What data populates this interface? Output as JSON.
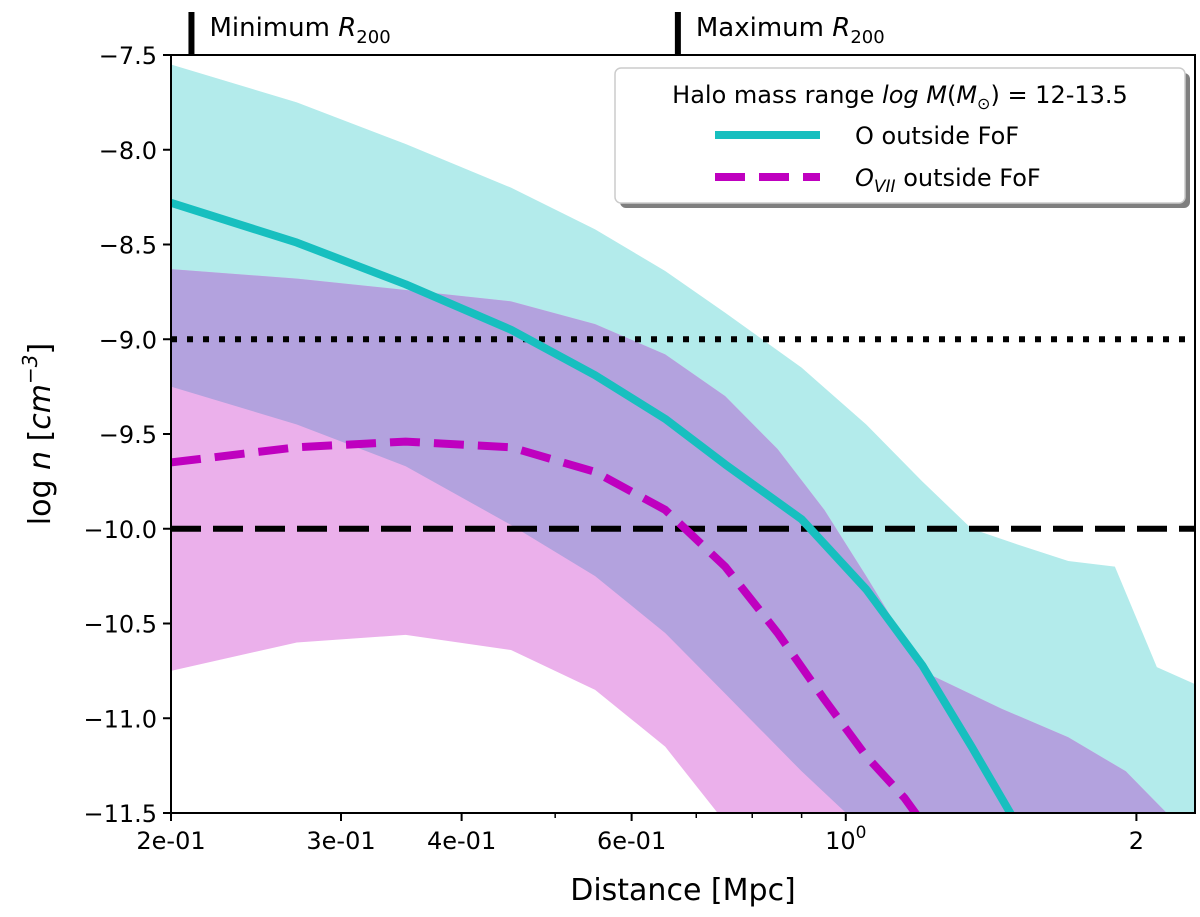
{
  "chart_data": {
    "type": "line",
    "xlabel": "Distance [Mpc]",
    "ylabel": "log n [cm⁻³]",
    "ylabel_parts": {
      "pre": "log ",
      "italic": "n",
      "open": " [",
      "unit": "cm",
      "exp": "−3",
      "close": "]"
    },
    "x_scale": "log",
    "xlim": [
      0.2,
      2.3
    ],
    "ylim": [
      -11.5,
      -7.5
    ],
    "xticks": [
      {
        "value": 0.2,
        "label": "2e-01"
      },
      {
        "value": 0.3,
        "label": "3e-01"
      },
      {
        "value": 0.4,
        "label": "4e-01"
      },
      {
        "value": 0.6,
        "label": "6e-01"
      },
      {
        "value": 1.0,
        "label": "10",
        "base": "10",
        "exp": "0"
      },
      {
        "value": 2.0,
        "label": "2"
      }
    ],
    "xminor": [
      0.5,
      0.7,
      0.8,
      0.9
    ],
    "yticks": [
      {
        "value": -7.5,
        "label": "−7.5"
      },
      {
        "value": -8.0,
        "label": "−8.0"
      },
      {
        "value": -8.5,
        "label": "−8.5"
      },
      {
        "value": -9.0,
        "label": "−9.0"
      },
      {
        "value": -9.5,
        "label": "−9.5"
      },
      {
        "value": -10.0,
        "label": "−10.0"
      },
      {
        "value": -10.5,
        "label": "−10.5"
      },
      {
        "value": -11.0,
        "label": "−11.0"
      },
      {
        "value": -11.5,
        "label": "−11.5"
      }
    ],
    "grid": false,
    "legend_position": "top-right",
    "legend_title": {
      "pre": "Halo mass range ",
      "italic": "log M",
      "open": "(",
      "sub_base": "M",
      "sub": "⊙",
      "close": ") = 12-13.5"
    },
    "series": [
      {
        "name": "O outside FoF",
        "label_parts": {
          "text": "O outside FoF"
        },
        "color": "#17bfbf",
        "style": "solid",
        "x": [
          0.2,
          0.27,
          0.35,
          0.45,
          0.55,
          0.65,
          0.75,
          0.9,
          1.05,
          1.2,
          1.35,
          1.5
        ],
        "y": [
          -8.28,
          -8.49,
          -8.71,
          -8.95,
          -9.19,
          -9.42,
          -9.66,
          -9.95,
          -10.32,
          -10.72,
          -11.15,
          -11.55
        ],
        "band_lower": [
          -9.25,
          -9.45,
          -9.67,
          -9.98,
          -10.25,
          -10.55,
          -10.87,
          -11.28,
          -11.6,
          -11.6,
          -11.6,
          -11.6
        ],
        "band_upper": [
          -7.55,
          -7.75,
          -7.97,
          -8.2,
          -8.42,
          -8.64,
          -8.86,
          -9.15,
          -9.45,
          -9.75,
          -10.0,
          -10.08
        ],
        "band_upper_ext": {
          "x": [
            1.7,
            1.9,
            2.1,
            2.3
          ],
          "y": [
            -10.17,
            -10.2,
            -10.73,
            -10.82
          ]
        },
        "band_lower_ext": {
          "x": [
            1.7,
            1.9,
            2.1,
            2.3
          ],
          "y": [
            -11.5,
            -11.5,
            -11.5,
            -11.5
          ]
        }
      },
      {
        "name": "O_VII outside FoF",
        "label_parts": {
          "italic": "O",
          "sub": "VII",
          "text": " outside FoF"
        },
        "color": "#bf00bf",
        "style": "dashed",
        "x": [
          0.2,
          0.27,
          0.35,
          0.45,
          0.55,
          0.65,
          0.75,
          0.85,
          0.95,
          1.05,
          1.15,
          1.2
        ],
        "y": [
          -9.65,
          -9.57,
          -9.54,
          -9.57,
          -9.7,
          -9.9,
          -10.2,
          -10.55,
          -10.9,
          -11.2,
          -11.42,
          -11.55
        ],
        "band_lower": [
          -10.75,
          -10.6,
          -10.56,
          -10.64,
          -10.85,
          -11.15,
          -11.55,
          -11.6,
          -11.6,
          -11.6,
          -11.6,
          -11.6
        ],
        "band_upper": [
          -8.63,
          -8.68,
          -8.74,
          -8.8,
          -8.92,
          -9.08,
          -9.3,
          -9.58,
          -9.9,
          -10.25,
          -10.58,
          -10.75
        ],
        "band_upper_ext": {
          "x": [
            1.45,
            1.7,
            1.95,
            2.15
          ],
          "y": [
            -10.95,
            -11.1,
            -11.28,
            -11.5
          ]
        },
        "band_lower_ext": {
          "x": [
            1.45,
            1.7,
            1.95,
            2.15
          ],
          "y": [
            -11.5,
            -11.5,
            -11.5,
            -11.5
          ]
        }
      }
    ],
    "hlines": [
      {
        "y": -9.0,
        "style": "dotted",
        "color": "#000000"
      },
      {
        "y": -10.0,
        "style": "dashed",
        "color": "#000000"
      }
    ],
    "annotations": [
      {
        "x": 0.21,
        "label": "Minimum R200",
        "label_parts": {
          "pre": "Minimum ",
          "italic": "R",
          "sub": "200"
        }
      },
      {
        "x": 0.67,
        "label": "Maximum R200",
        "label_parts": {
          "pre": "Maximum ",
          "italic": "R",
          "sub": "200"
        }
      }
    ],
    "band_colors": {
      "o_fill": "#b3ebeb",
      "ovii_fill": "#ebb0eb",
      "overlap_fill": "#b3a2de"
    }
  }
}
